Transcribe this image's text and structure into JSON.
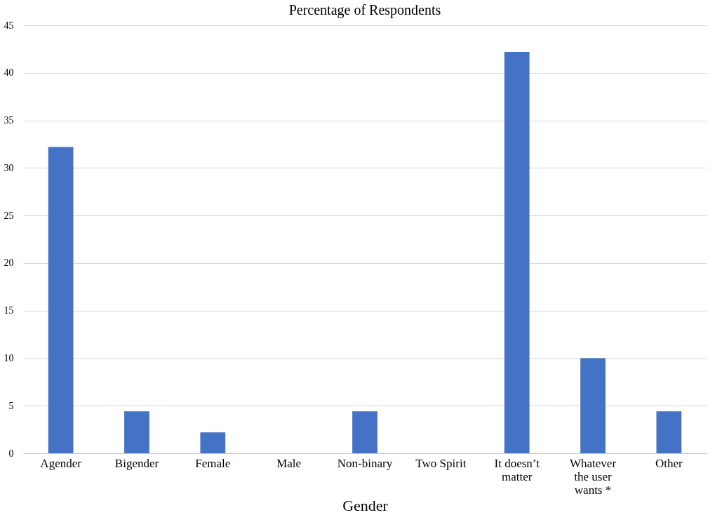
{
  "chart_data": {
    "type": "bar",
    "title": "Percentage of Respondents",
    "xlabel": "Gender",
    "categories": [
      "Agender",
      "Bigender",
      "Female",
      "Male",
      "Non-binary",
      "Two Spirit",
      "It doesn’t matter",
      "Whatever the user wants *",
      "Other"
    ],
    "values": [
      32.2,
      4.4,
      2.2,
      0,
      4.4,
      0,
      42.2,
      10,
      4.4
    ],
    "color": "#4472c4",
    "ylim": [
      0,
      45
    ],
    "yticks": [
      0,
      5,
      10,
      15,
      20,
      25,
      30,
      35,
      40,
      45
    ],
    "grid": "y"
  }
}
